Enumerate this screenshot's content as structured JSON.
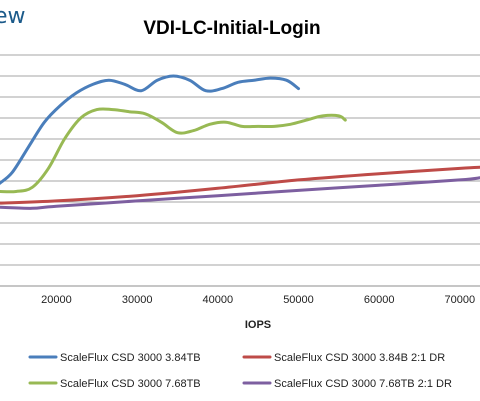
{
  "logo_fragment": "ew",
  "chart_data": {
    "type": "line",
    "title": "VDI-LC-Initial-Login",
    "xlabel": "IOPS",
    "ylabel": "",
    "xticks": [
      20000,
      30000,
      40000,
      50000,
      60000,
      70000
    ],
    "xtick_labels": [
      "20000",
      "30000",
      "40000",
      "50000",
      "60000",
      "70000"
    ],
    "xlim": [
      13000,
      72500
    ],
    "ylim": [
      0,
      11
    ],
    "grid": true,
    "legend_position": "bottom",
    "series": [
      {
        "name": "ScaleFlux CSD 3000 3.84TB",
        "color": "#4a7ebb",
        "x": [
          13000,
          14500,
          16500,
          18500,
          20500,
          22500,
          24500,
          26500,
          28500,
          30500,
          32500,
          34500,
          36500,
          38500,
          40500,
          42500,
          44500,
          46500,
          48500,
          50000
        ],
        "y": [
          4.9,
          5.4,
          6.6,
          7.8,
          8.6,
          9.2,
          9.6,
          9.8,
          9.6,
          9.3,
          9.8,
          10.0,
          9.8,
          9.3,
          9.4,
          9.7,
          9.8,
          9.9,
          9.8,
          9.4
        ]
      },
      {
        "name": "ScaleFlux CSD 3000 3.84B 2:1 DR",
        "color": "#be4b48",
        "x": [
          13000,
          20000,
          30000,
          40000,
          50000,
          60000,
          70000,
          72500
        ],
        "y": [
          3.95,
          4.05,
          4.3,
          4.65,
          5.05,
          5.35,
          5.6,
          5.65
        ]
      },
      {
        "name": "ScaleFlux CSD 3000 7.68TB",
        "color": "#98b954",
        "x": [
          13000,
          15000,
          17000,
          19000,
          21000,
          23000,
          25000,
          27000,
          29000,
          31000,
          33000,
          35000,
          37000,
          39000,
          41000,
          43000,
          45000,
          47000,
          49000,
          51000,
          53000,
          55000,
          55800
        ],
        "y": [
          4.5,
          4.5,
          4.7,
          5.6,
          7.0,
          8.0,
          8.4,
          8.4,
          8.3,
          8.2,
          7.8,
          7.3,
          7.4,
          7.7,
          7.8,
          7.6,
          7.6,
          7.6,
          7.7,
          7.9,
          8.1,
          8.1,
          7.9
        ]
      },
      {
        "name": "ScaleFlux CSD 3000 7.68TB 2:1 DR",
        "color": "#7d5fa0",
        "x": [
          13000,
          17000,
          20000,
          30000,
          40000,
          50000,
          60000,
          70000,
          72500
        ],
        "y": [
          3.75,
          3.7,
          3.8,
          4.05,
          4.3,
          4.55,
          4.8,
          5.05,
          5.15
        ]
      }
    ]
  }
}
